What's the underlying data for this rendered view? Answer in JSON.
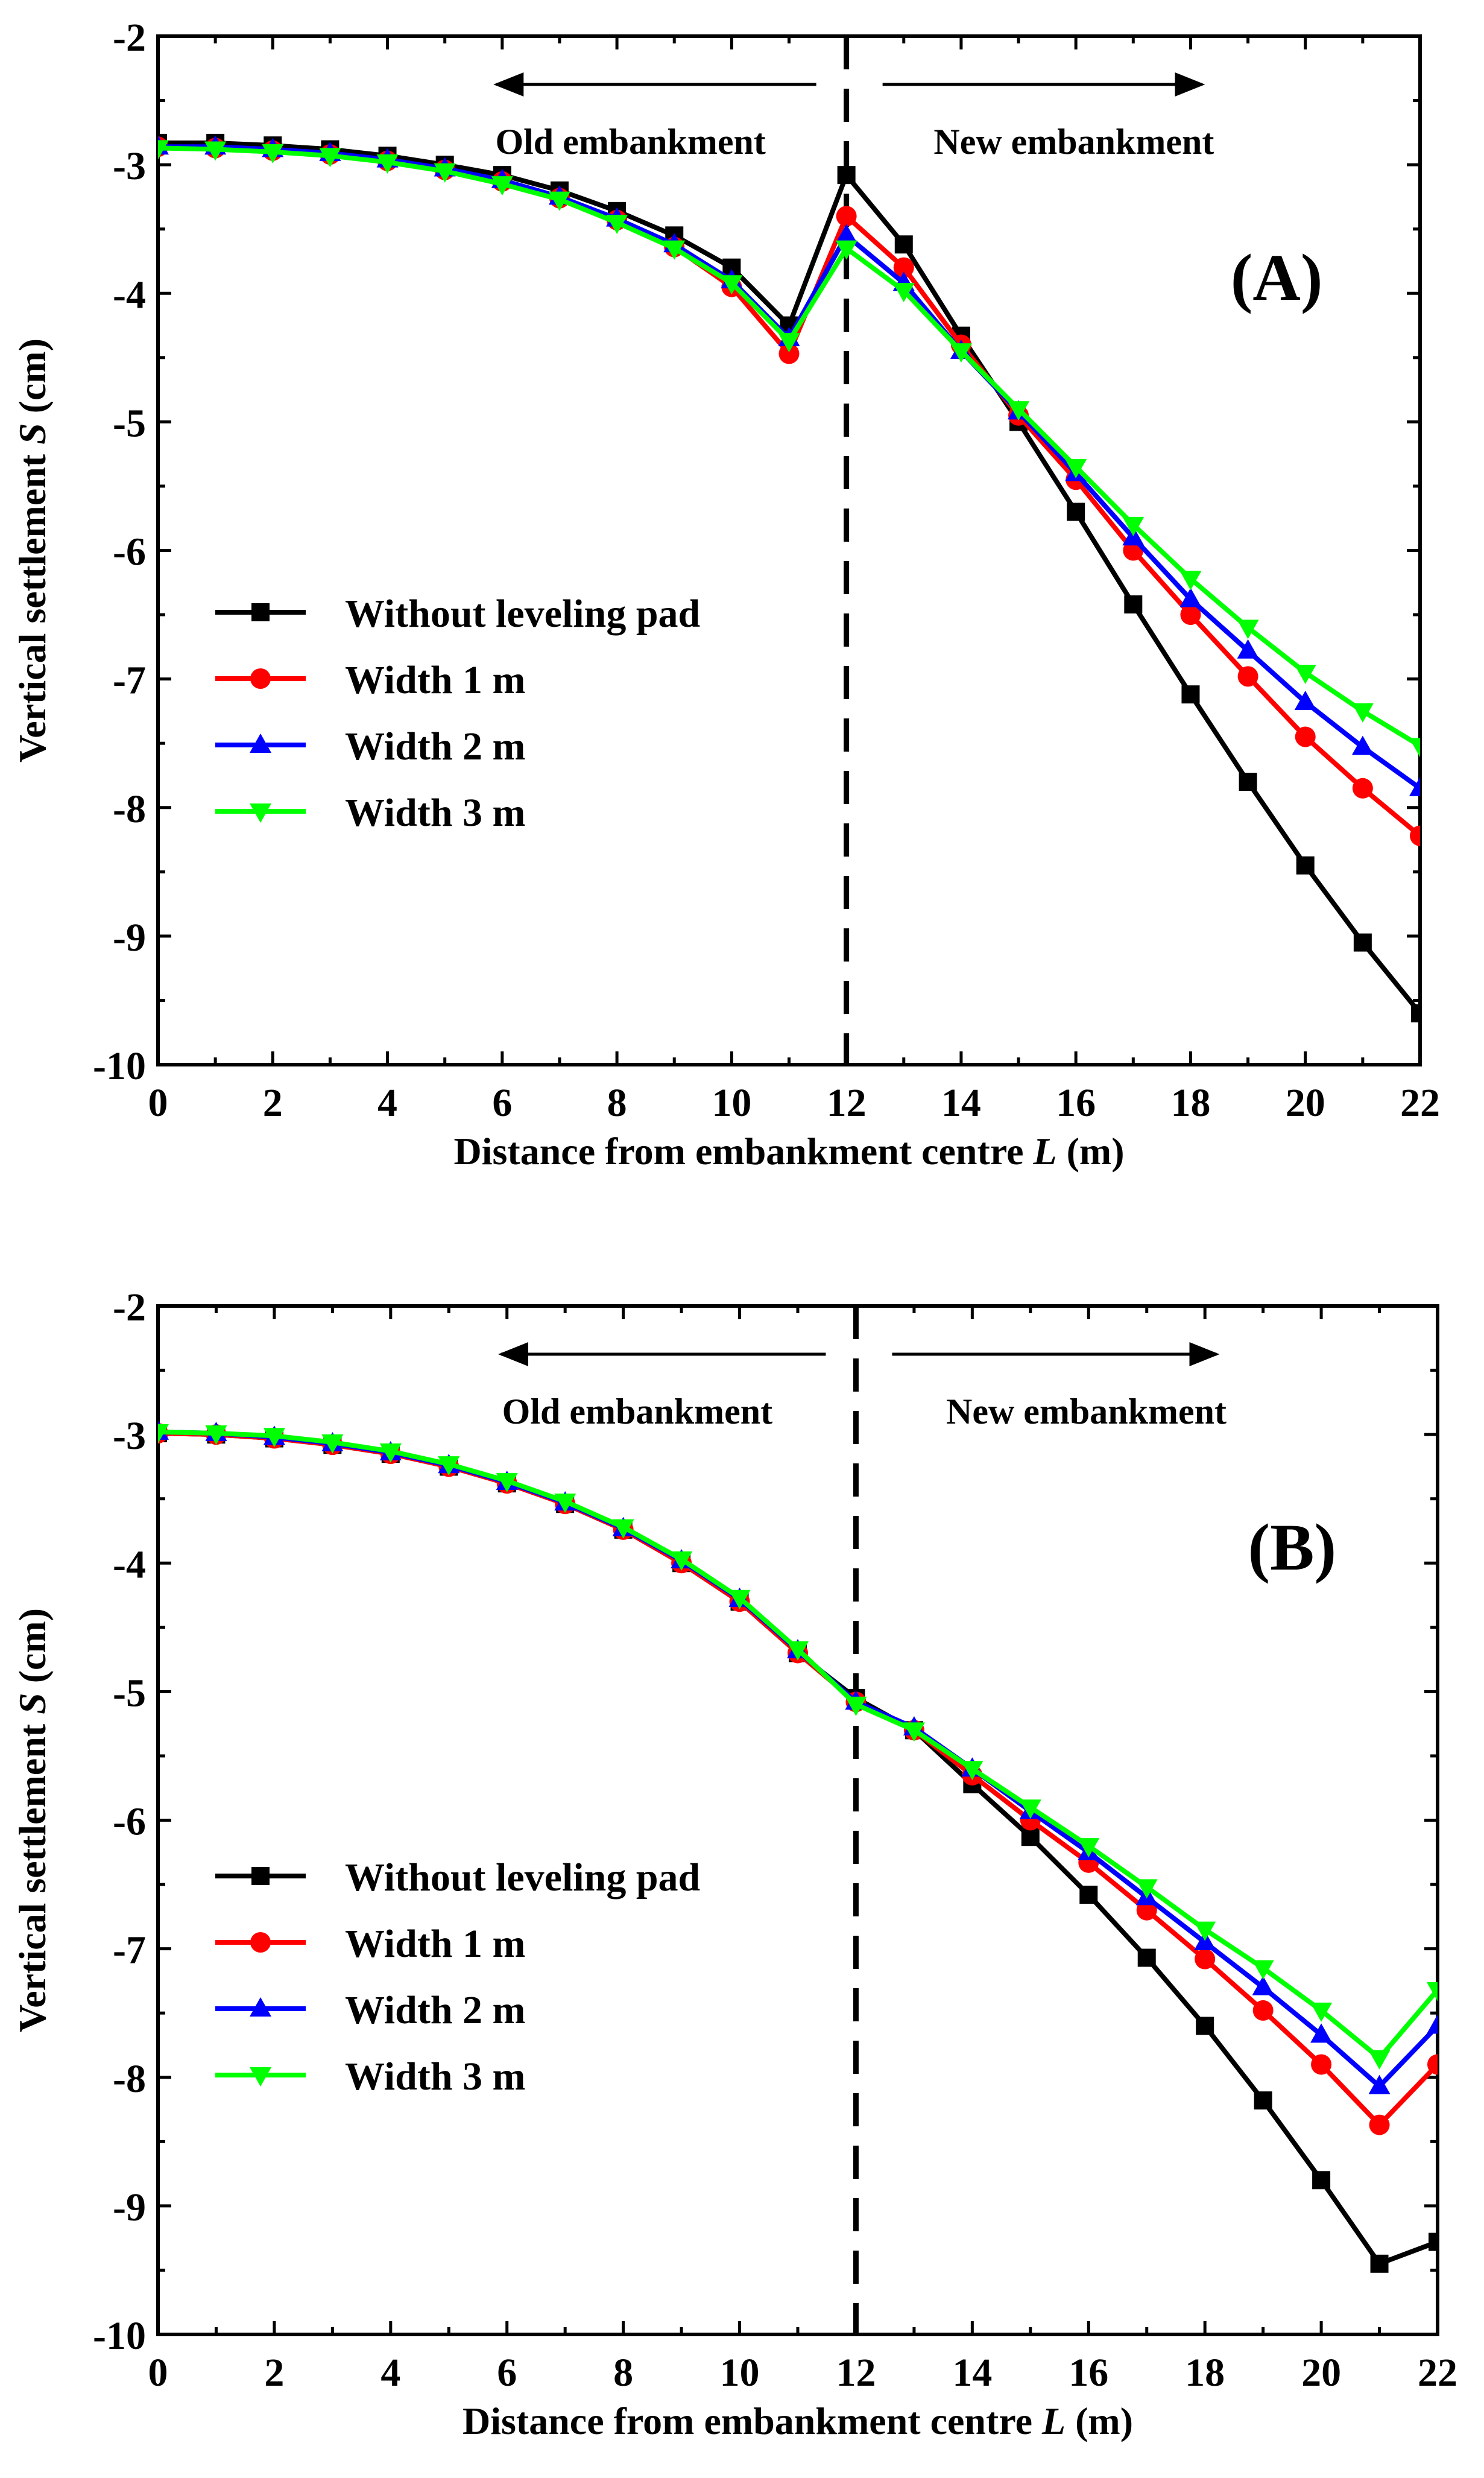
{
  "chart_data": [
    {
      "type": "line",
      "panel_label": "(A)",
      "xlabel": "Distance from embankment centre",
      "xlabel_var": "L",
      "xlabel_unit": " (m)",
      "ylabel": "Vertical settlement",
      "ylabel_var": "S",
      "ylabel_unit": " (cm)",
      "xlim": [
        0,
        22
      ],
      "ylim": [
        -10,
        -2
      ],
      "xticks": [
        "0",
        "2",
        "4",
        "6",
        "8",
        "10",
        "12",
        "14",
        "16",
        "18",
        "20",
        "22"
      ],
      "yticks": [
        "-2",
        "-3",
        "-4",
        "-5",
        "-6",
        "-7",
        "-8",
        "-9",
        "-10"
      ],
      "divider_x": 12,
      "annotations": {
        "left": "Old embankment",
        "right": "New embankment"
      },
      "x": [
        0,
        1,
        2,
        3,
        4,
        5,
        6,
        7,
        8,
        9,
        10,
        11,
        12,
        13,
        14,
        15,
        16,
        17,
        18,
        19,
        20,
        21,
        22
      ],
      "series": [
        {
          "name": "Without leveling pad",
          "color": "#000000",
          "marker": "square",
          "values": [
            -2.83,
            -2.83,
            -2.85,
            -2.88,
            -2.93,
            -3.0,
            -3.08,
            -3.2,
            -3.36,
            -3.55,
            -3.8,
            -4.25,
            -3.08,
            -3.62,
            -4.33,
            -5.0,
            -5.7,
            -6.42,
            -7.12,
            -7.8,
            -8.45,
            -9.05,
            -9.6
          ]
        },
        {
          "name": "Width 1 m",
          "color": "#ff0000",
          "marker": "circle",
          "values": [
            -2.86,
            -2.87,
            -2.89,
            -2.92,
            -2.97,
            -3.04,
            -3.13,
            -3.26,
            -3.43,
            -3.64,
            -3.95,
            -4.47,
            -3.4,
            -3.8,
            -4.4,
            -4.95,
            -5.45,
            -6.0,
            -6.5,
            -6.98,
            -7.45,
            -7.85,
            -8.22
          ]
        },
        {
          "name": "Width 2 m",
          "color": "#0000ff",
          "marker": "triangle-up",
          "values": [
            -2.86,
            -2.86,
            -2.88,
            -2.91,
            -2.96,
            -3.03,
            -3.12,
            -3.25,
            -3.42,
            -3.62,
            -3.9,
            -4.35,
            -3.55,
            -3.92,
            -4.45,
            -4.92,
            -5.4,
            -5.9,
            -6.38,
            -6.78,
            -7.18,
            -7.53,
            -7.85
          ]
        },
        {
          "name": "Width 3 m",
          "color": "#00ff00",
          "marker": "triangle-down",
          "values": [
            -2.87,
            -2.88,
            -2.9,
            -2.93,
            -2.98,
            -3.05,
            -3.15,
            -3.27,
            -3.45,
            -3.65,
            -3.92,
            -4.37,
            -3.65,
            -3.98,
            -4.45,
            -4.9,
            -5.35,
            -5.8,
            -6.22,
            -6.6,
            -6.95,
            -7.25,
            -7.52
          ]
        }
      ]
    },
    {
      "type": "line",
      "panel_label": "(B)",
      "xlabel": "Distance from embankment centre",
      "xlabel_var": "L",
      "xlabel_unit": " (m)",
      "ylabel": "Vertical settlement",
      "ylabel_var": "S",
      "ylabel_unit": " (cm)",
      "xlim": [
        0,
        22
      ],
      "ylim": [
        -10,
        -2
      ],
      "xticks": [
        "0",
        "2",
        "4",
        "6",
        "8",
        "10",
        "12",
        "14",
        "16",
        "18",
        "20",
        "22"
      ],
      "yticks": [
        "-2",
        "-3",
        "-4",
        "-5",
        "-6",
        "-7",
        "-8",
        "-9",
        "-10"
      ],
      "divider_x": 12,
      "annotations": {
        "left": "Old embankment",
        "right": "New embankment"
      },
      "x": [
        0,
        1,
        2,
        3,
        4,
        5,
        6,
        7,
        8,
        9,
        10,
        11,
        12,
        13,
        14,
        15,
        16,
        17,
        18,
        19,
        20,
        21,
        22
      ],
      "series": [
        {
          "name": "Without leveling pad",
          "color": "#000000",
          "marker": "square",
          "values": [
            -2.99,
            -3.0,
            -3.03,
            -3.08,
            -3.15,
            -3.25,
            -3.38,
            -3.54,
            -3.74,
            -4.0,
            -4.3,
            -4.7,
            -5.05,
            -5.3,
            -5.72,
            -6.13,
            -6.58,
            -7.07,
            -7.6,
            -8.18,
            -8.8,
            -9.45,
            -9.28
          ]
        },
        {
          "name": "Width 1 m",
          "color": "#ff0000",
          "marker": "circle",
          "values": [
            -2.99,
            -3.0,
            -3.03,
            -3.08,
            -3.15,
            -3.25,
            -3.38,
            -3.54,
            -3.74,
            -4.0,
            -4.3,
            -4.7,
            -5.08,
            -5.3,
            -5.65,
            -6.0,
            -6.33,
            -6.7,
            -7.08,
            -7.48,
            -7.9,
            -8.37,
            -7.9
          ]
        },
        {
          "name": "Width 2 m",
          "color": "#0000ff",
          "marker": "triangle-up",
          "values": [
            -2.98,
            -2.99,
            -3.02,
            -3.07,
            -3.14,
            -3.24,
            -3.37,
            -3.53,
            -3.73,
            -3.98,
            -4.28,
            -4.68,
            -5.08,
            -5.28,
            -5.6,
            -5.93,
            -6.25,
            -6.6,
            -6.95,
            -7.3,
            -7.67,
            -8.07,
            -7.6
          ]
        },
        {
          "name": "Width 3 m",
          "color": "#00ff00",
          "marker": "triangle-down",
          "values": [
            -2.98,
            -2.99,
            -3.01,
            -3.06,
            -3.13,
            -3.23,
            -3.36,
            -3.52,
            -3.72,
            -3.97,
            -4.27,
            -4.67,
            -5.1,
            -5.3,
            -5.6,
            -5.9,
            -6.2,
            -6.52,
            -6.85,
            -7.15,
            -7.48,
            -7.85,
            -7.32
          ]
        }
      ]
    }
  ]
}
